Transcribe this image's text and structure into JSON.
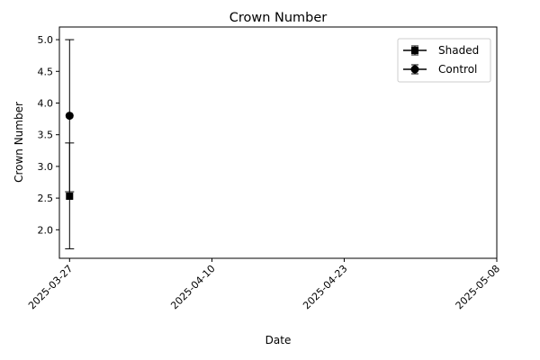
{
  "chart_data": {
    "type": "scatter",
    "title": "Crown Number",
    "xlabel": "Date",
    "ylabel": "Crown Number",
    "x_ticks": [
      "2025-03-27",
      "2025-04-10",
      "2025-04-23",
      "2025-05-08"
    ],
    "xlim": [
      "2025-03-27",
      "2025-05-08"
    ],
    "y_ticks": [
      "2.0",
      "2.5",
      "3.0",
      "3.5",
      "4.0",
      "4.5",
      "5.0"
    ],
    "ylim": [
      1.55,
      5.2
    ],
    "grid": false,
    "legend_position": "top-right",
    "series": [
      {
        "name": "Shaded",
        "marker": "square",
        "color": "#000000",
        "points": [
          {
            "x": "2025-03-27",
            "y": 2.53,
            "err_low": 1.7,
            "err_high": 3.37
          }
        ]
      },
      {
        "name": "Control",
        "marker": "circle",
        "color": "#000000",
        "points": [
          {
            "x": "2025-03-27",
            "y": 3.8,
            "err_low": 2.6,
            "err_high": 5.0
          }
        ]
      }
    ]
  }
}
